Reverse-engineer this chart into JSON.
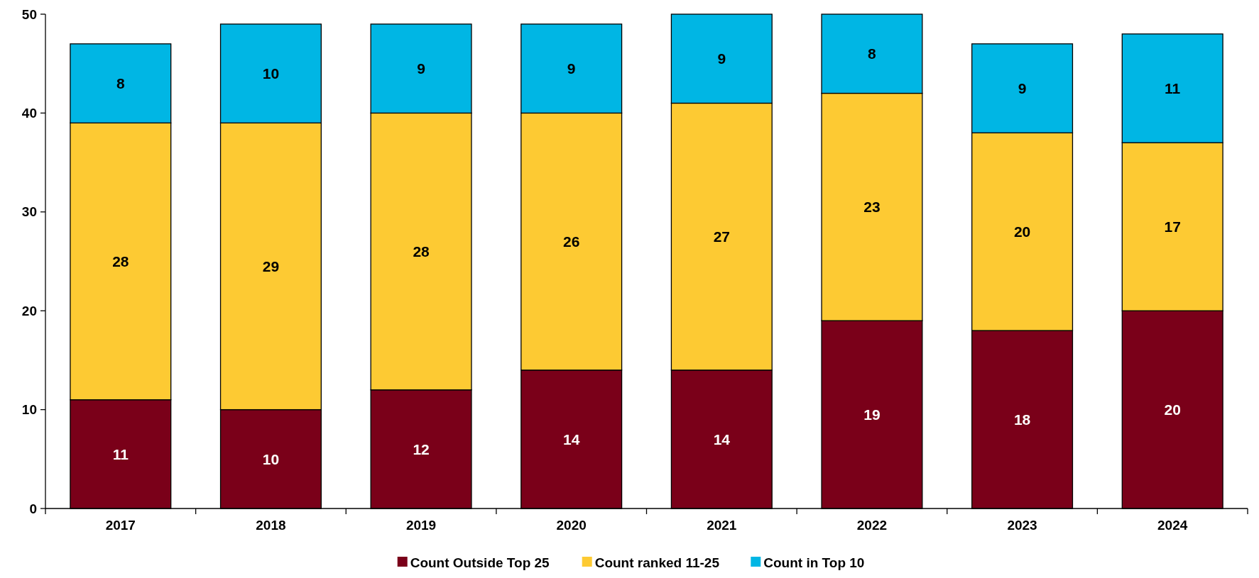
{
  "chart_data": {
    "type": "bar",
    "stacked": true,
    "categories": [
      "2017",
      "2018",
      "2019",
      "2020",
      "2021",
      "2022",
      "2023",
      "2024"
    ],
    "series": [
      {
        "name": "Count Outside Top 25",
        "color": "#7a0019",
        "values": [
          11,
          10,
          12,
          14,
          14,
          19,
          18,
          20
        ]
      },
      {
        "name": "Count ranked 11-25",
        "color": "#fdca33",
        "values": [
          28,
          29,
          28,
          26,
          27,
          23,
          20,
          17
        ]
      },
      {
        "name": "Count in Top 10",
        "color": "#00b6e4",
        "values": [
          8,
          10,
          9,
          9,
          9,
          8,
          9,
          11
        ]
      }
    ],
    "ylim": [
      0,
      50
    ],
    "yticks": [
      0,
      10,
      20,
      30,
      40,
      50
    ],
    "data_labels": true,
    "legend": "bottom",
    "grid": false
  }
}
